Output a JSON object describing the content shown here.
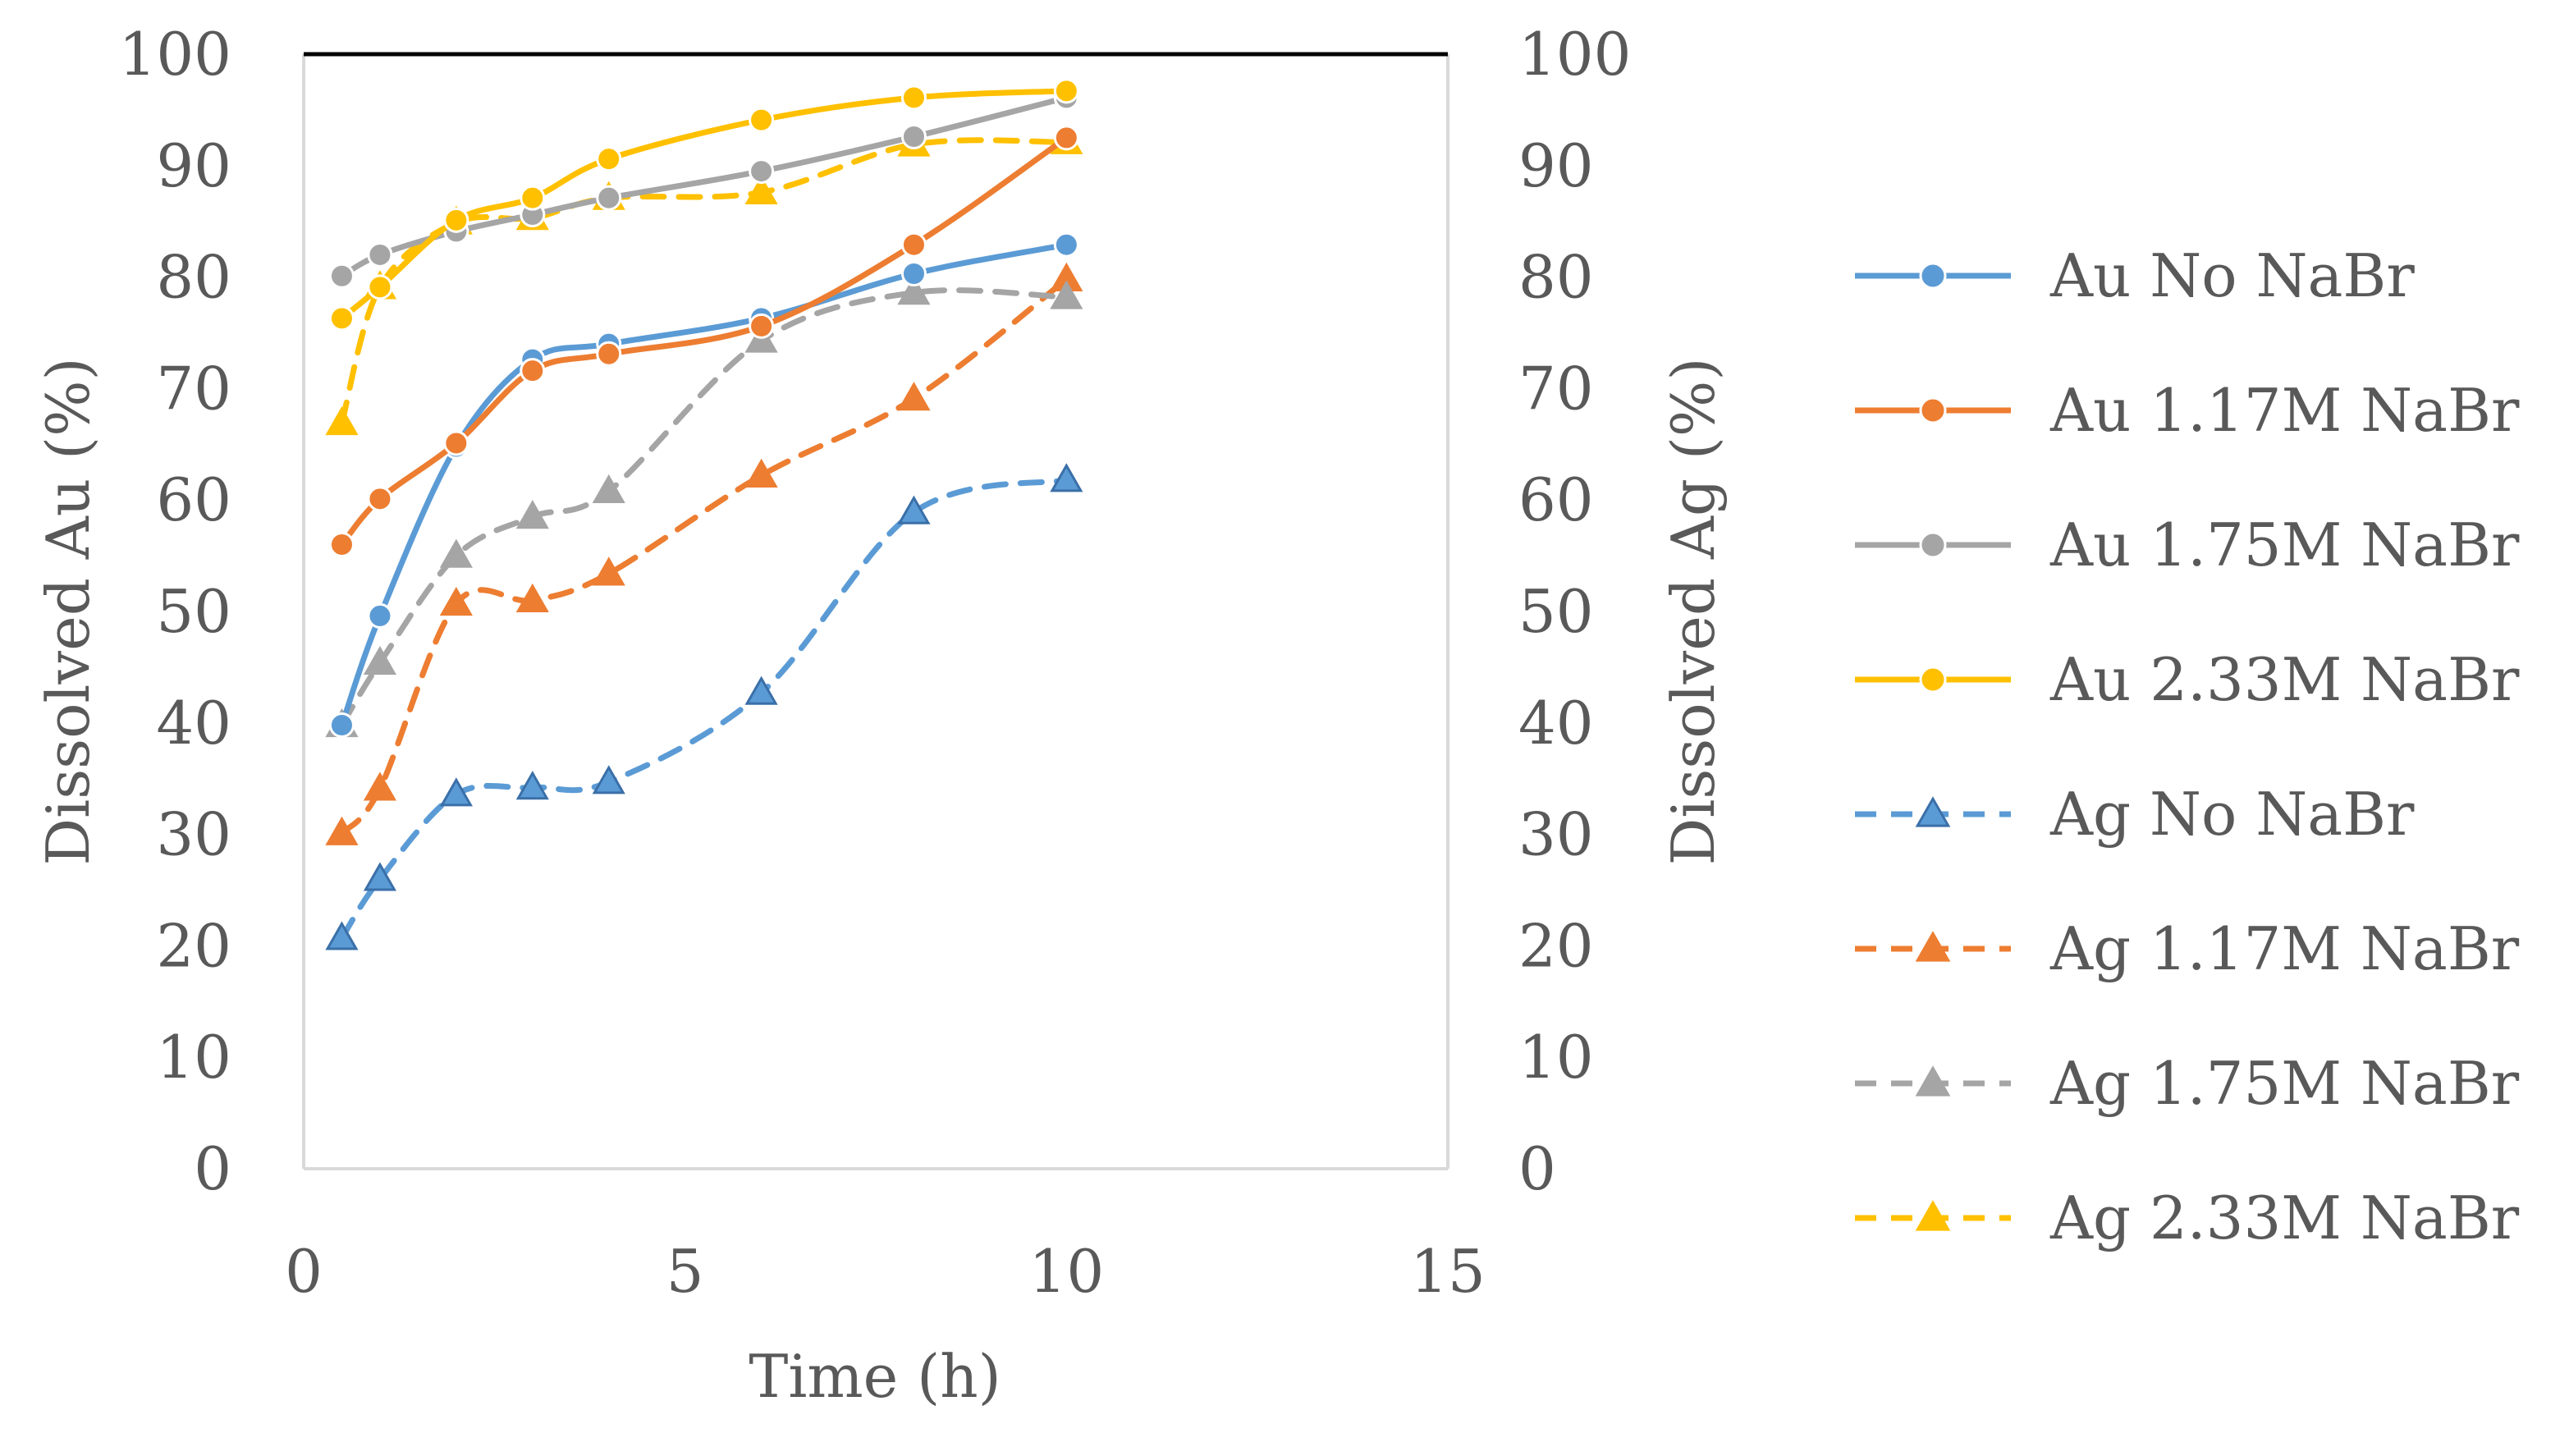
{
  "chart_data": {
    "type": "line",
    "title": "",
    "xlabel": "Time (h)",
    "ylabel_left": "Dissolved Au (%)",
    "ylabel_right": "Dissolved Ag (%)",
    "xlim": [
      0,
      15
    ],
    "ylim": [
      0,
      100
    ],
    "x_ticks": [
      0,
      5,
      10,
      15
    ],
    "y_ticks": [
      0,
      10,
      20,
      30,
      40,
      50,
      60,
      70,
      80,
      90,
      100
    ],
    "grid": false,
    "legend_position": "right",
    "x": [
      0.5,
      1,
      2,
      3,
      4,
      6,
      8,
      10
    ],
    "series": [
      {
        "name": "Au No NaBr",
        "axis": "left",
        "color": "#5B9BD5",
        "dash": "solid",
        "marker": "circle",
        "values": [
          39.8,
          49.6,
          64.8,
          72.6,
          74.0,
          76.3,
          80.3,
          82.9
        ]
      },
      {
        "name": "Au 1.17M NaBr",
        "axis": "left",
        "color": "#ED7D31",
        "dash": "solid",
        "marker": "circle",
        "values": [
          56.0,
          60.1,
          65.1,
          71.6,
          73.1,
          75.6,
          82.9,
          92.5
        ]
      },
      {
        "name": "Au 1.75M NaBr",
        "axis": "left",
        "color": "#A5A5A5",
        "dash": "solid",
        "marker": "circle",
        "values": [
          80.1,
          82.0,
          84.1,
          85.6,
          87.1,
          89.5,
          92.6,
          96.1
        ]
      },
      {
        "name": "Au 2.33M NaBr",
        "axis": "left",
        "color": "#FFC000",
        "dash": "solid",
        "marker": "circle",
        "values": [
          76.3,
          79.1,
          85.1,
          87.1,
          90.6,
          94.1,
          96.1,
          96.7
        ]
      },
      {
        "name": "Ag No NaBr",
        "axis": "right",
        "color": "#5B9BD5",
        "dash": "dashed",
        "marker": "triangle",
        "values": [
          20.7,
          26.0,
          33.6,
          34.2,
          34.7,
          42.7,
          58.9,
          61.8
        ]
      },
      {
        "name": "Ag 1.17M NaBr",
        "axis": "right",
        "color": "#ED7D31",
        "dash": "dashed",
        "marker": "triangle",
        "values": [
          30.1,
          34.1,
          50.7,
          51.0,
          53.4,
          62.2,
          69.1,
          79.8
        ]
      },
      {
        "name": "Ag 1.75M NaBr",
        "axis": "right",
        "color": "#A5A5A5",
        "dash": "dashed",
        "marker": "triangle",
        "values": [
          39.8,
          45.4,
          55.0,
          58.5,
          60.8,
          74.3,
          78.6,
          78.2
        ]
      },
      {
        "name": "Ag 2.33M NaBr",
        "axis": "right",
        "color": "#FFC000",
        "dash": "dashed",
        "marker": "triangle",
        "values": [
          66.9,
          79.1,
          84.9,
          85.3,
          87.1,
          87.6,
          91.9,
          92.1
        ]
      }
    ]
  }
}
